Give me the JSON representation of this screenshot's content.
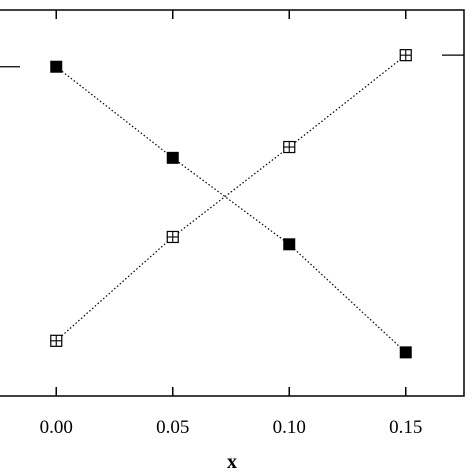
{
  "chart_data": {
    "type": "line",
    "title": "",
    "xlabel": "x",
    "ylabel": "",
    "xlim": [
      -0.025,
      0.175
    ],
    "ylim": [
      0,
      1
    ],
    "x_ticks": [
      "0.00",
      "0.05",
      "0.10",
      "0.15"
    ],
    "x_tick_values": [
      0.0,
      0.05,
      0.1,
      0.15
    ],
    "grid": false,
    "legend": "none",
    "series": [
      {
        "marker": "filled-square",
        "line_style": "dotted",
        "color": "#000000",
        "x": [
          0.0,
          0.05,
          0.1,
          0.15
        ],
        "y": [
          0.853,
          0.617,
          0.393,
          0.113
        ]
      },
      {
        "marker": "open-square-cross",
        "line_style": "dotted",
        "color": "#000000",
        "x": [
          0.0,
          0.05,
          0.1,
          0.15
        ],
        "y": [
          0.143,
          0.412,
          0.645,
          0.883
        ]
      }
    ],
    "side_marks": [
      {
        "side": "left",
        "series": 0
      },
      {
        "side": "right",
        "series": 1
      }
    ]
  }
}
